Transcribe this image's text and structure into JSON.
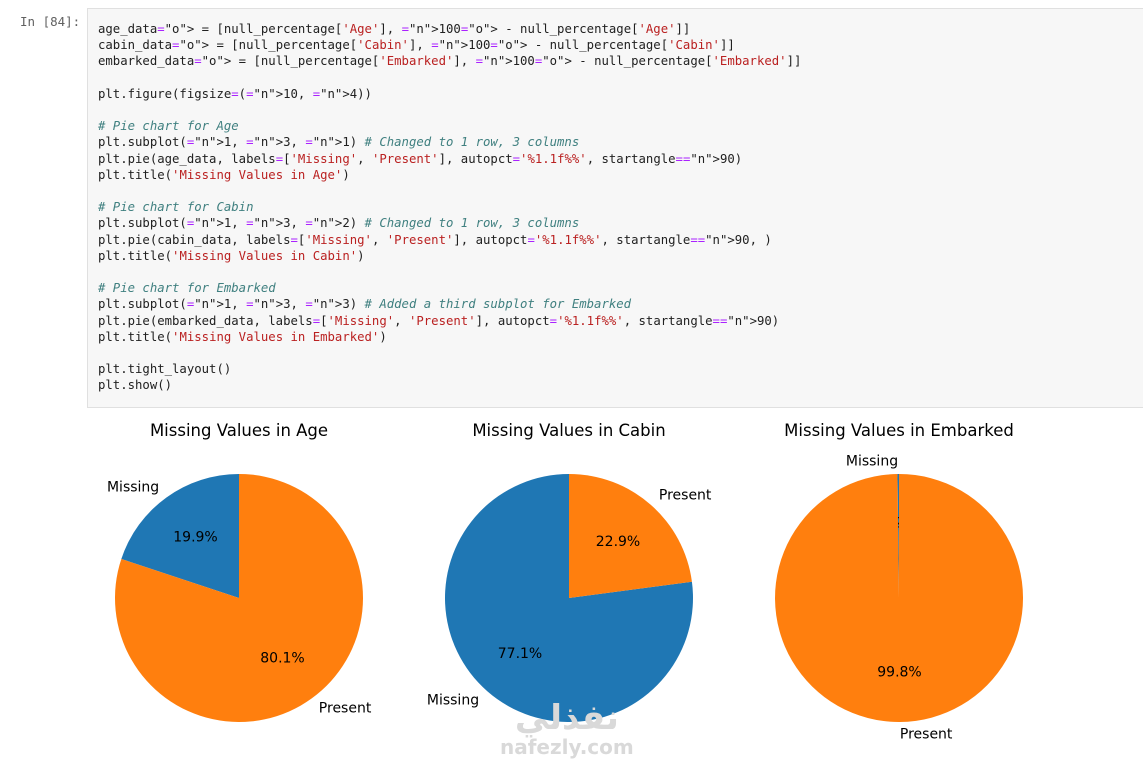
{
  "cell": {
    "prompt": "In [84]:",
    "lines": [
      "age_data = [null_percentage['Age'], 100 - null_percentage['Age']]",
      "cabin_data = [null_percentage['Cabin'], 100 - null_percentage['Cabin']]",
      "embarked_data = [null_percentage['Embarked'], 100 - null_percentage['Embarked']]",
      "",
      "plt.figure(figsize=(10, 4))",
      "",
      "# Pie chart for Age",
      "plt.subplot(1, 3, 1) # Changed to 1 row, 3 columns",
      "plt.pie(age_data, labels=['Missing', 'Present'], autopct='%1.1f%%', startangle=90)",
      "plt.title('Missing Values in Age')",
      "",
      "# Pie chart for Cabin",
      "plt.subplot(1, 3, 2) # Changed to 1 row, 3 columns",
      "plt.pie(cabin_data, labels=['Missing', 'Present'], autopct='%1.1f%%', startangle=90, )",
      "plt.title('Missing Values in Cabin')",
      "",
      "# Pie chart for Embarked",
      "plt.subplot(1, 3, 3) # Added a third subplot for Embarked",
      "plt.pie(embarked_data, labels=['Missing', 'Present'], autopct='%1.1f%%', startangle=90)",
      "plt.title('Missing Values in Embarked')",
      "",
      "plt.tight_layout()",
      "plt.show()"
    ]
  },
  "colors": {
    "missing": "#1f77b4",
    "present": "#ff7f0e"
  },
  "watermark": {
    "arabic": "نفذلي",
    "latin": "nafezly.com"
  },
  "chart_data": [
    {
      "type": "pie",
      "title": "Missing Values in Age",
      "labels": [
        "Missing",
        "Present"
      ],
      "values": [
        19.9,
        80.1
      ],
      "autopct": [
        "19.9%",
        "80.1%"
      ],
      "colors": [
        "#1f77b4",
        "#ff7f0e"
      ],
      "startangle": 90
    },
    {
      "type": "pie",
      "title": "Missing Values in Cabin",
      "labels": [
        "Missing",
        "Present"
      ],
      "values": [
        77.1,
        22.9
      ],
      "autopct": [
        "77.1%",
        "22.9%"
      ],
      "colors": [
        "#1f77b4",
        "#ff7f0e"
      ],
      "startangle": 90
    },
    {
      "type": "pie",
      "title": "Missing Values in Embarked",
      "labels": [
        "Missing",
        "Present"
      ],
      "values": [
        0.2,
        99.8
      ],
      "autopct": [
        "0.2%",
        "99.8%"
      ],
      "colors": [
        "#1f77b4",
        "#ff7f0e"
      ],
      "startangle": 90
    }
  ]
}
